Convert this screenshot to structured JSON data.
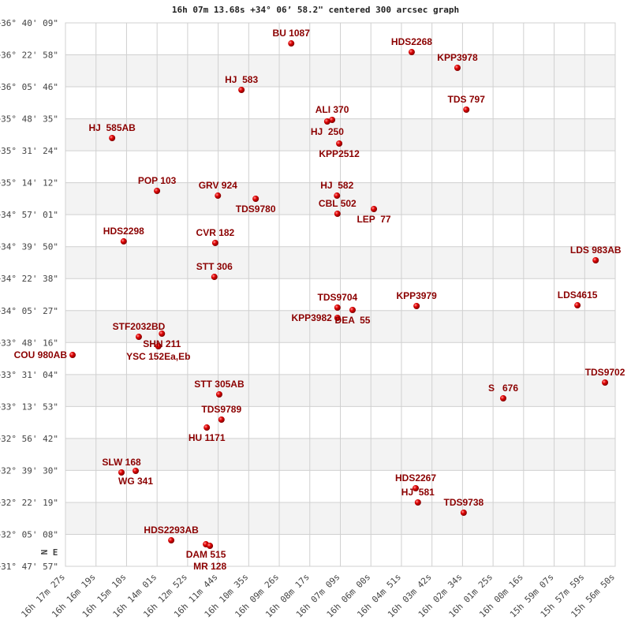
{
  "chart_data": {
    "type": "scatter",
    "title": "16h 07m 13.68s +34° 06’ 58.2\" centered 300 arcsec graph",
    "xlabel": "",
    "ylabel": "",
    "xlim": [
      "16h17m27s",
      "15h56m50s"
    ],
    "ylim": [
      "+31°47'57\"",
      "+36°40'09\""
    ],
    "x_reversed": true,
    "grid": true,
    "alternating_bands": true,
    "compass": [
      "N",
      "E"
    ],
    "colors": {
      "point": "#e00000",
      "label": "#8b0000",
      "grid": "#d0d0d0",
      "band": "#f3f3f3"
    },
    "x_ticks": [
      "16h 17m 27s",
      "16h 16m 19s",
      "16h 15m 10s",
      "16h 14m 01s",
      "16h 12m 52s",
      "16h 11m 44s",
      "16h 10m 35s",
      "16h 09m 26s",
      "16h 08m 17s",
      "16h 07m 09s",
      "16h 06m 00s",
      "16h 04m 51s",
      "16h 03m 42s",
      "16h 02m 34s",
      "16h 01m 25s",
      "16h 00m 16s",
      "15h 59m 07s",
      "15h 57m 59s",
      "15h 56m 50s"
    ],
    "y_ticks": [
      "+36° 40' 09\"",
      "+36° 22' 58\"",
      "+36° 05' 46\"",
      "+35° 48' 35\"",
      "+35° 31' 24\"",
      "+35° 14' 12\"",
      "+34° 57' 01\"",
      "+34° 39' 50\"",
      "+34° 22' 38\"",
      "+34° 05' 27\"",
      "+33° 48' 16\"",
      "+33° 31' 04\"",
      "+33° 13' 53\"",
      "+32° 56' 42\"",
      "+32° 39' 30\"",
      "+32° 22' 19\"",
      "+32° 05' 08\"",
      "+31° 47' 57\""
    ],
    "points": [
      {
        "name": "BU 1087",
        "ra": "16h08m59s",
        "dec": "+36°29'07\""
      },
      {
        "name": "HDS2268",
        "ra": "16h04m28s",
        "dec": "+36°24'27\""
      },
      {
        "name": "KPP3978",
        "ra": "16h02m45s",
        "dec": "+36°15'59\""
      },
      {
        "name": "HJ  583",
        "ra": "16h10m51s",
        "dec": "+36°04'06\""
      },
      {
        "name": "TDS 797",
        "ra": "16h02m25s",
        "dec": "+35°53'30\""
      },
      {
        "name": "ALI 370",
        "ra": "16h07m27s",
        "dec": "+35°47'59\""
      },
      {
        "name": "HJ  250",
        "ra": "16h07m38s",
        "dec": "+35°47'08\""
      },
      {
        "name": "KPP2512",
        "ra": "16h07m11s",
        "dec": "+35°35'16\""
      },
      {
        "name": "HJ  585AB",
        "ra": "16h15m42s",
        "dec": "+35°38'14\""
      },
      {
        "name": "POP 103",
        "ra": "16h14m01s",
        "dec": "+35°09'49\""
      },
      {
        "name": "GRV 924",
        "ra": "16h11m44s",
        "dec": "+35°07'16\""
      },
      {
        "name": "TDS9780",
        "ra": "16h10m19s",
        "dec": "+35°05'35\""
      },
      {
        "name": "HJ  582",
        "ra": "16h07m16s",
        "dec": "+35°07'16\""
      },
      {
        "name": "CBL 502",
        "ra": "16h07m15s",
        "dec": "+34°57'31\""
      },
      {
        "name": "LEP  77",
        "ra": "16h05m53s",
        "dec": "+35°00'04\""
      },
      {
        "name": "HDS2298",
        "ra": "16h15m16s",
        "dec": "+34°42'40\""
      },
      {
        "name": "CVR 182",
        "ra": "16h11m50s",
        "dec": "+34°41'50\""
      },
      {
        "name": "LDS 983AB",
        "ra": "15h57m34s",
        "dec": "+34°32'30\""
      },
      {
        "name": "STT 306",
        "ra": "16h11m52s",
        "dec": "+34°23'35\""
      },
      {
        "name": "TDS9704",
        "ra": "16h07m15s",
        "dec": "+34°07'03\""
      },
      {
        "name": "DEA  55",
        "ra": "16h06m41s",
        "dec": "+34°05'47\""
      },
      {
        "name": "KPP3982",
        "ra": "16h07m15s",
        "dec": "+34°01'32\""
      },
      {
        "name": "KPP3979",
        "ra": "16h04m17s",
        "dec": "+34°07'54\""
      },
      {
        "name": "LDS4615",
        "ra": "15h58m15s",
        "dec": "+34°08'19\""
      },
      {
        "name": "STF2032BD",
        "ra": "16h14m42s",
        "dec": "+33°51'21\""
      },
      {
        "name": "SHN 211",
        "ra": "16h13m50s",
        "dec": "+33°53'03\""
      },
      {
        "name": "YSC 152Ea,Eb",
        "ra": "16h13m58s",
        "dec": "+33°46'16\""
      },
      {
        "name": "COU 980AB",
        "ra": "16h17m11s",
        "dec": "+33°41'36\""
      },
      {
        "name": "TDS9702",
        "ra": "15h57m13s",
        "dec": "+33°26'46\""
      },
      {
        "name": "S   676",
        "ra": "16h01m02s",
        "dec": "+33°18'17\""
      },
      {
        "name": "STT 305AB",
        "ra": "16h11m41s",
        "dec": "+33°20'24\""
      },
      {
        "name": "TDS9789",
        "ra": "16h11m36s",
        "dec": "+33°06'50\""
      },
      {
        "name": "HU 1171",
        "ra": "16h12m09s",
        "dec": "+33°02'35\""
      },
      {
        "name": "SLW 168",
        "ra": "16h15m21s",
        "dec": "+32°38'25\""
      },
      {
        "name": "WG 341",
        "ra": "16h14m49s",
        "dec": "+32°39'16\""
      },
      {
        "name": "HDS2267",
        "ra": "16h04m19s",
        "dec": "+32°29'56\""
      },
      {
        "name": "HJ  581",
        "ra": "16h04m14s",
        "dec": "+32°22'18\""
      },
      {
        "name": "TDS9738",
        "ra": "16h02m31s",
        "dec": "+32°16'47\""
      },
      {
        "name": "HDS2293AB",
        "ra": "16h13m29s",
        "dec": "+32°01'56\""
      },
      {
        "name": "DAM 515",
        "ra": "16h12m11s",
        "dec": "+31°59'49\""
      },
      {
        "name": "MR 128",
        "ra": "16h12m02s",
        "dec": "+31°58'58\""
      }
    ]
  }
}
